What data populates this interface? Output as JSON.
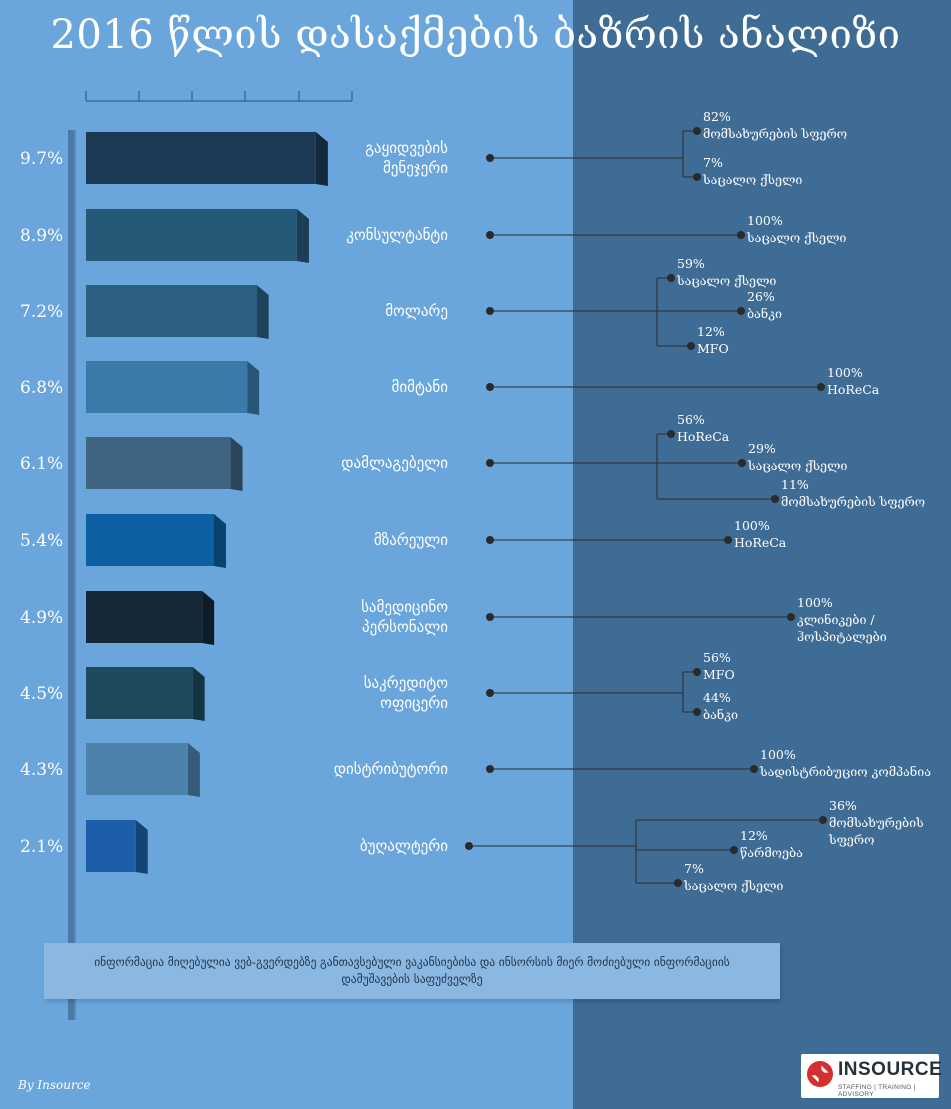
{
  "title": "2016 წლის დასაქმების ბაზრის ანალიზი",
  "chart_data": {
    "type": "bar",
    "orientation": "horizontal",
    "unit": "%",
    "categories": [
      "გაყიდვების მენეჯერი",
      "კონსულტანტი",
      "მოლარე",
      "მიმტანი",
      "დამლაგებელი",
      "მზარეული",
      "სამედიცინო პერსონალი",
      "საკრედიტო ოფიცერი",
      "დისტრიბუტორი",
      "ბუღალტერი"
    ],
    "value_labels": [
      "9.7%",
      "8.9%",
      "7.2%",
      "6.8%",
      "6.1%",
      "5.4%",
      "4.9%",
      "4.5%",
      "4.3%",
      "2.1%"
    ],
    "values": [
      9.7,
      8.9,
      7.2,
      6.8,
      6.1,
      5.4,
      4.9,
      4.5,
      4.3,
      2.1
    ],
    "category_lines": [
      [
        "გაყიდვების",
        "მენეჯერი"
      ],
      [
        "კონსულტანტი"
      ],
      [
        "მოლარე"
      ],
      [
        "მიმტანი"
      ],
      [
        "დამლაგებელი"
      ],
      [
        "მზარეული"
      ],
      [
        "სამედიცინო",
        "პერსონალი"
      ],
      [
        "საკრედიტო",
        "ოფიცერი"
      ],
      [
        "დისტრიბუტორი"
      ],
      [
        "ბუღალტერი"
      ]
    ],
    "bar_colors": [
      "#1c3a55",
      "#265878",
      "#2d5f82",
      "#3a7aa8",
      "#3e6482",
      "#0c5fa0",
      "#142838",
      "#1d4a5e",
      "#4c82ac",
      "#1c5fa8"
    ],
    "breakdowns": [
      [
        {
          "pct": "82%",
          "label": [
            "მომსახურების სფერო"
          ]
        },
        {
          "pct": "7%",
          "label": [
            "საცალო ქსელი"
          ]
        }
      ],
      [
        {
          "pct": "100%",
          "label": [
            "საცალო ქსელი"
          ]
        }
      ],
      [
        {
          "pct": "59%",
          "label": [
            "საცალო ქსელი"
          ]
        },
        {
          "pct": "26%",
          "label": [
            "ბანკი"
          ]
        },
        {
          "pct": "12%",
          "label": [
            "MFO"
          ]
        }
      ],
      [
        {
          "pct": "100%",
          "label": [
            "HoReCa"
          ]
        }
      ],
      [
        {
          "pct": "56%",
          "label": [
            "HoReCa"
          ]
        },
        {
          "pct": "29%",
          "label": [
            "საცალო ქსელი"
          ]
        },
        {
          "pct": "11%",
          "label": [
            "მომსახურების სფერო"
          ]
        }
      ],
      [
        {
          "pct": "100%",
          "label": [
            "HoReCa"
          ]
        }
      ],
      [
        {
          "pct": "100%",
          "label": [
            "კლინიკები /",
            "ჰოსპიტალები"
          ]
        }
      ],
      [
        {
          "pct": "56%",
          "label": [
            "MFO"
          ]
        },
        {
          "pct": "44%",
          "label": [
            "ბანკი"
          ]
        }
      ],
      [
        {
          "pct": "100%",
          "label": [
            "სადისტრიბუციო კომპანია"
          ]
        }
      ],
      [
        {
          "pct": "36%",
          "label": [
            "მომსახურების",
            "სფერო"
          ]
        },
        {
          "pct": "12%",
          "label": [
            "წარმოება"
          ]
        },
        {
          "pct": "7%",
          "label": [
            "საცალო ქსელი"
          ]
        }
      ]
    ]
  },
  "note": "ინფორმაცია მიღებულია ვებ-გვერდებზე განთავსებული ვაკანსიებისა და ინსორსის მიერ მოძიებული ინფორმაციის დამუშავების საფუძველზე",
  "byline": "By Insource",
  "logo": {
    "name": "INSOURCE",
    "tagline": "STAFFING | TRAINING | ADVISORY"
  },
  "colors": {
    "left_background": "#6aa6db",
    "right_background": "#3f6c95",
    "accent": "#d32f2f"
  }
}
